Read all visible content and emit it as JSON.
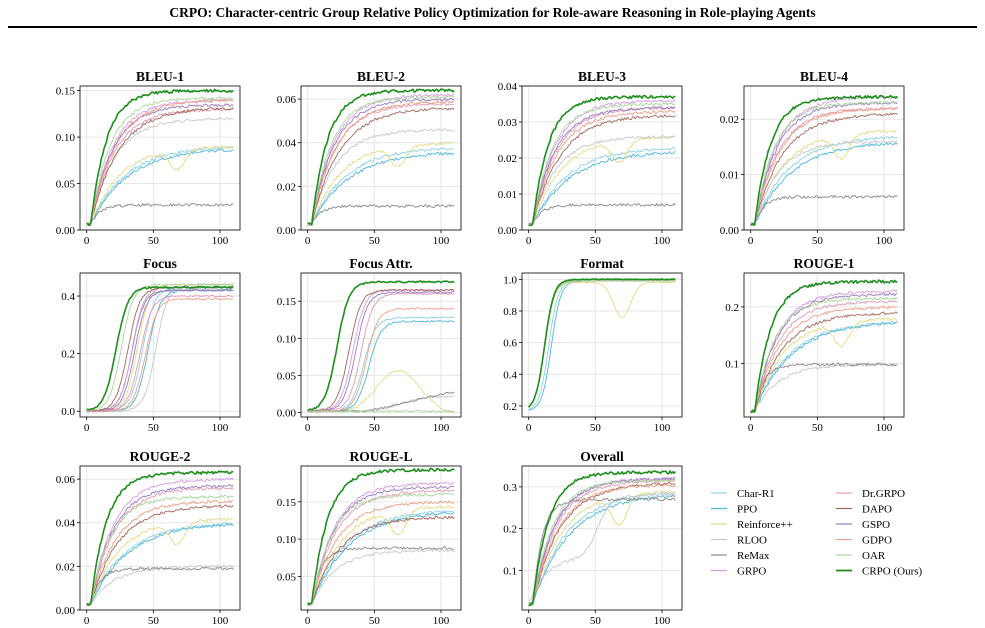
{
  "header": {
    "title": "CRPO: Character-centric Group Relative Policy Optimization for Role-aware Reasoning in Role-playing Agents"
  },
  "legend": {
    "placement": "bottom-right",
    "entries": [
      {
        "name": "Char-R1",
        "color": "#8fd1e8"
      },
      {
        "name": "PPO",
        "color": "#4fb8dc"
      },
      {
        "name": "Reinforce++",
        "color": "#e3dc86"
      },
      {
        "name": "RLOO",
        "color": "#c9c9c9"
      },
      {
        "name": "ReMax",
        "color": "#8a8a8a"
      },
      {
        "name": "GRPO",
        "color": "#d59ce6"
      },
      {
        "name": "Dr.GRPO",
        "color": "#e39ab2"
      },
      {
        "name": "DAPO",
        "color": "#a4665a"
      },
      {
        "name": "GSPO",
        "color": "#9a7bc4"
      },
      {
        "name": "GDPO",
        "color": "#ef9f86"
      },
      {
        "name": "OAR",
        "color": "#a8d79a"
      },
      {
        "name": "CRPO (Ours)",
        "color": "#1e8f1e"
      }
    ]
  },
  "chart_data": [
    {
      "type": "line",
      "title": "BLEU-1",
      "xlim": [
        -5,
        115
      ],
      "ylim": [
        0,
        0.155
      ],
      "xticks": [
        "0",
        "50",
        "100"
      ],
      "yticks": [
        "0.00",
        "0.05",
        "0.10",
        "0.15"
      ],
      "grid": true,
      "final": {
        "Char-R1": 0.09,
        "PPO": 0.088,
        "Reinforce++": 0.09,
        "RLOO": 0.12,
        "ReMax": 0.027,
        "GRPO": 0.14,
        "Dr.GRPO": 0.13,
        "DAPO": 0.132,
        "GSPO": 0.135,
        "GDPO": 0.14,
        "OAR": 0.142,
        "CRPO (Ours)": 0.15
      }
    },
    {
      "type": "line",
      "title": "BLEU-2",
      "xlim": [
        -5,
        115
      ],
      "ylim": [
        0,
        0.066
      ],
      "xticks": [
        "0",
        "50",
        "100"
      ],
      "yticks": [
        "0.00",
        "0.02",
        "0.04",
        "0.06"
      ],
      "grid": true,
      "final": {
        "Char-R1": 0.038,
        "PPO": 0.036,
        "Reinforce++": 0.04,
        "RLOO": 0.046,
        "ReMax": 0.011,
        "GRPO": 0.062,
        "Dr.GRPO": 0.058,
        "DAPO": 0.056,
        "GSPO": 0.06,
        "GDPO": 0.059,
        "OAR": 0.061,
        "CRPO (Ours)": 0.064
      }
    },
    {
      "type": "line",
      "title": "BLEU-3",
      "xlim": [
        -5,
        115
      ],
      "ylim": [
        0,
        0.04
      ],
      "xticks": [
        "0",
        "50",
        "100"
      ],
      "yticks": [
        "0.00",
        "0.01",
        "0.02",
        "0.03",
        "0.04"
      ],
      "grid": true,
      "final": {
        "Char-R1": 0.023,
        "PPO": 0.022,
        "Reinforce++": 0.026,
        "RLOO": 0.026,
        "ReMax": 0.007,
        "GRPO": 0.036,
        "Dr.GRPO": 0.034,
        "DAPO": 0.032,
        "GSPO": 0.034,
        "GDPO": 0.033,
        "OAR": 0.035,
        "CRPO (Ours)": 0.037
      }
    },
    {
      "type": "line",
      "title": "BLEU-4",
      "xlim": [
        -5,
        115
      ],
      "ylim": [
        0,
        0.026
      ],
      "xticks": [
        "0",
        "50",
        "100"
      ],
      "yticks": [
        "0.00",
        "0.01",
        "0.02"
      ],
      "grid": true,
      "final": {
        "Char-R1": 0.017,
        "PPO": 0.016,
        "Reinforce++": 0.018,
        "RLOO": 0.016,
        "ReMax": 0.006,
        "GRPO": 0.024,
        "Dr.GRPO": 0.022,
        "DAPO": 0.021,
        "GSPO": 0.023,
        "GDPO": 0.022,
        "OAR": 0.023,
        "CRPO (Ours)": 0.024
      }
    },
    {
      "type": "line",
      "title": "Focus",
      "xlim": [
        -5,
        115
      ],
      "ylim": [
        -0.02,
        0.48
      ],
      "xticks": [
        "0",
        "50",
        "100"
      ],
      "yticks": [
        "0.0",
        "0.2",
        "0.4"
      ],
      "grid": true,
      "final": {
        "Char-R1": 0.43,
        "PPO": 0.42,
        "Reinforce++": 0.44,
        "RLOO": 0.44,
        "ReMax": 0.42,
        "GRPO": 0.43,
        "Dr.GRPO": 0.4,
        "DAPO": 0.43,
        "GSPO": 0.42,
        "GDPO": 0.39,
        "OAR": 0.44,
        "CRPO (Ours)": 0.43
      }
    },
    {
      "type": "line",
      "title": "Focus Attr.",
      "xlim": [
        -5,
        115
      ],
      "ylim": [
        -0.006,
        0.188
      ],
      "xticks": [
        "0",
        "50",
        "100"
      ],
      "yticks": [
        "0.00",
        "0.05",
        "0.10",
        "0.15"
      ],
      "grid": true,
      "final": {
        "Char-R1": 0.128,
        "PPO": 0.123,
        "Reinforce++": 0.0,
        "RLOO": 0.03,
        "ReMax": 0.028,
        "GRPO": 0.165,
        "Dr.GRPO": 0.16,
        "DAPO": 0.165,
        "GSPO": 0.162,
        "GDPO": 0.14,
        "OAR": 0.002,
        "CRPO (Ours)": 0.176
      }
    },
    {
      "type": "line",
      "title": "Format",
      "xlim": [
        -5,
        115
      ],
      "ylim": [
        0.13,
        1.04
      ],
      "xticks": [
        "0",
        "50",
        "100"
      ],
      "yticks": [
        "0.2",
        "0.4",
        "0.6",
        "0.8",
        "1.0"
      ],
      "grid": true,
      "final": {
        "Char-R1": 0.99,
        "PPO": 0.99,
        "Reinforce++": 0.98,
        "RLOO": 0.99,
        "ReMax": 0.99,
        "GRPO": 0.99,
        "Dr.GRPO": 0.99,
        "DAPO": 0.99,
        "GSPO": 0.99,
        "GDPO": 0.99,
        "OAR": 0.99,
        "CRPO (Ours)": 1.0
      }
    },
    {
      "type": "line",
      "title": "ROUGE-1",
      "xlim": [
        -5,
        115
      ],
      "ylim": [
        0.005,
        0.26
      ],
      "xticks": [
        "0",
        "50",
        "100"
      ],
      "yticks": [
        "0.1",
        "0.2"
      ],
      "grid": true,
      "final": {
        "Char-R1": 0.175,
        "PPO": 0.175,
        "Reinforce++": 0.18,
        "RLOO": 0.098,
        "ReMax": 0.098,
        "GRPO": 0.228,
        "Dr.GRPO": 0.21,
        "DAPO": 0.19,
        "GSPO": 0.222,
        "GDPO": 0.2,
        "OAR": 0.215,
        "CRPO (Ours)": 0.245
      }
    },
    {
      "type": "line",
      "title": "ROUGE-2",
      "xlim": [
        -5,
        115
      ],
      "ylim": [
        0,
        0.066
      ],
      "xticks": [
        "0",
        "50",
        "100"
      ],
      "yticks": [
        "0.00",
        "0.02",
        "0.04",
        "0.06"
      ],
      "grid": true,
      "final": {
        "Char-R1": 0.04,
        "PPO": 0.04,
        "Reinforce++": 0.042,
        "RLOO": 0.02,
        "ReMax": 0.019,
        "GRPO": 0.06,
        "Dr.GRPO": 0.056,
        "DAPO": 0.048,
        "GSPO": 0.057,
        "GDPO": 0.05,
        "OAR": 0.052,
        "CRPO (Ours)": 0.063
      }
    },
    {
      "type": "line",
      "title": "ROUGE-L",
      "xlim": [
        -5,
        115
      ],
      "ylim": [
        0.005,
        0.198
      ],
      "xticks": [
        "0",
        "50",
        "100"
      ],
      "yticks": [
        "0.05",
        "0.10",
        "0.15"
      ],
      "grid": true,
      "final": {
        "Char-R1": 0.14,
        "PPO": 0.138,
        "Reinforce++": 0.145,
        "RLOO": 0.085,
        "ReMax": 0.088,
        "GRPO": 0.175,
        "Dr.GRPO": 0.165,
        "DAPO": 0.13,
        "GSPO": 0.17,
        "GDPO": 0.15,
        "OAR": 0.16,
        "CRPO (Ours)": 0.193
      }
    },
    {
      "type": "line",
      "title": "Overall",
      "xlim": [
        -5,
        115
      ],
      "ylim": [
        0.005,
        0.35
      ],
      "xticks": [
        "0",
        "50",
        "100"
      ],
      "yticks": [
        "0.1",
        "0.2",
        "0.3"
      ],
      "grid": true,
      "final": {
        "Char-R1": 0.29,
        "PPO": 0.285,
        "Reinforce++": 0.29,
        "RLOO": 0.26,
        "ReMax": 0.27,
        "GRPO": 0.32,
        "Dr.GRPO": 0.315,
        "DAPO": 0.31,
        "GSPO": 0.32,
        "GDPO": 0.305,
        "OAR": 0.315,
        "CRPO (Ours)": 0.335
      }
    }
  ]
}
